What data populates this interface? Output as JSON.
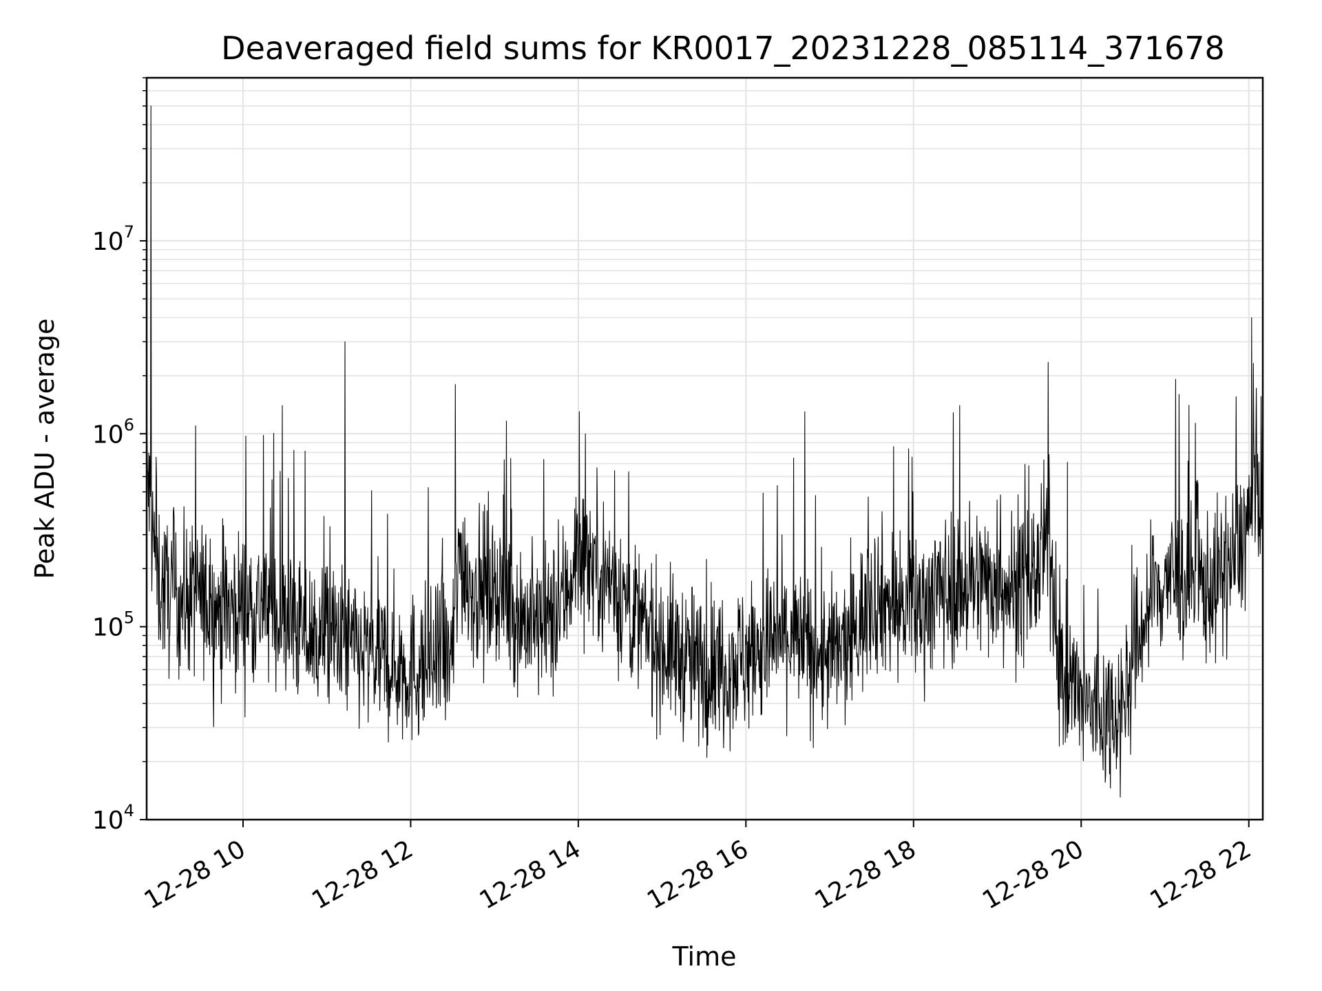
{
  "chart_data": {
    "type": "line",
    "title": "Deaveraged field sums for KR0017_20231228_085114_371678",
    "xlabel": "Time",
    "ylabel": "Peak ADU - average",
    "yscale": "log",
    "ylim": [
      10000,
      70000000
    ],
    "xlim": [
      "2023-12-28 08:51",
      "2023-12-28 22:10"
    ],
    "grid": true,
    "line_color": "#000000",
    "x_ticks": [
      "12-28 10",
      "12-28 12",
      "12-28 14",
      "12-28 16",
      "12-28 18",
      "12-28 20",
      "12-28 22"
    ],
    "y_ticks": [
      {
        "base": "10",
        "exp": "4",
        "value": 10000
      },
      {
        "base": "10",
        "exp": "5",
        "value": 100000
      },
      {
        "base": "10",
        "exp": "6",
        "value": 1000000
      },
      {
        "base": "10",
        "exp": "7",
        "value": 10000000
      }
    ],
    "series": [
      {
        "x": [
          "2023-12-28 08:51",
          "2023-12-28 08:55",
          "2023-12-28 09:00",
          "2023-12-28 09:05",
          "2023-12-28 09:15",
          "2023-12-28 09:30",
          "2023-12-28 09:45",
          "2023-12-28 10:00",
          "2023-12-28 10:15",
          "2023-12-28 10:30",
          "2023-12-28 10:45",
          "2023-12-28 11:00",
          "2023-12-28 11:15",
          "2023-12-28 11:30",
          "2023-12-28 11:45",
          "2023-12-28 12:00",
          "2023-12-28 12:15",
          "2023-12-28 12:30",
          "2023-12-28 12:35",
          "2023-12-28 12:45",
          "2023-12-28 13:00",
          "2023-12-28 13:15",
          "2023-12-28 13:30",
          "2023-12-28 13:45",
          "2023-12-28 14:00",
          "2023-12-28 14:15",
          "2023-12-28 14:30",
          "2023-12-28 14:45",
          "2023-12-28 15:00",
          "2023-12-28 15:15",
          "2023-12-28 15:30",
          "2023-12-28 15:45",
          "2023-12-28 16:00",
          "2023-12-28 16:15",
          "2023-12-28 16:30",
          "2023-12-28 16:45",
          "2023-12-28 17:00",
          "2023-12-28 17:15",
          "2023-12-28 17:30",
          "2023-12-28 17:45",
          "2023-12-28 18:00",
          "2023-12-28 18:15",
          "2023-12-28 18:30",
          "2023-12-28 18:45",
          "2023-12-28 19:00",
          "2023-12-28 19:15",
          "2023-12-28 19:30",
          "2023-12-28 19:37",
          "2023-12-28 19:45",
          "2023-12-28 20:00",
          "2023-12-28 20:15",
          "2023-12-28 20:30",
          "2023-12-28 20:45",
          "2023-12-28 21:00",
          "2023-12-28 21:15",
          "2023-12-28 21:30",
          "2023-12-28 21:45",
          "2023-12-28 22:00",
          "2023-12-28 22:10"
        ],
        "y": [
          700000,
          300000,
          170000,
          150000,
          140000,
          140000,
          120000,
          130000,
          130000,
          110000,
          90000,
          90000,
          80000,
          70000,
          65000,
          60000,
          65000,
          70000,
          250000,
          150000,
          170000,
          120000,
          100000,
          110000,
          250000,
          200000,
          150000,
          100000,
          80000,
          70000,
          60000,
          65000,
          70000,
          80000,
          90000,
          75000,
          70000,
          80000,
          150000,
          130000,
          120000,
          150000,
          160000,
          170000,
          180000,
          150000,
          200000,
          300000,
          60000,
          40000,
          35000,
          40000,
          110000,
          180000,
          170000,
          160000,
          190000,
          350000,
          600000
        ]
      }
    ],
    "spikes": [
      {
        "x": "2023-12-28 08:54",
        "y": 50000000
      },
      {
        "x": "2023-12-28 09:26",
        "y": 1100000
      },
      {
        "x": "2023-12-28 10:28",
        "y": 1400000
      },
      {
        "x": "2023-12-28 11:13",
        "y": 3000000
      },
      {
        "x": "2023-12-28 12:32",
        "y": 1800000
      },
      {
        "x": "2023-12-28 14:05",
        "y": 1000000
      },
      {
        "x": "2023-12-28 16:42",
        "y": 1300000
      },
      {
        "x": "2023-12-28 18:33",
        "y": 1400000
      },
      {
        "x": "2023-12-28 21:10",
        "y": 1600000
      },
      {
        "x": "2023-12-28 22:02",
        "y": 4000000
      }
    ]
  }
}
